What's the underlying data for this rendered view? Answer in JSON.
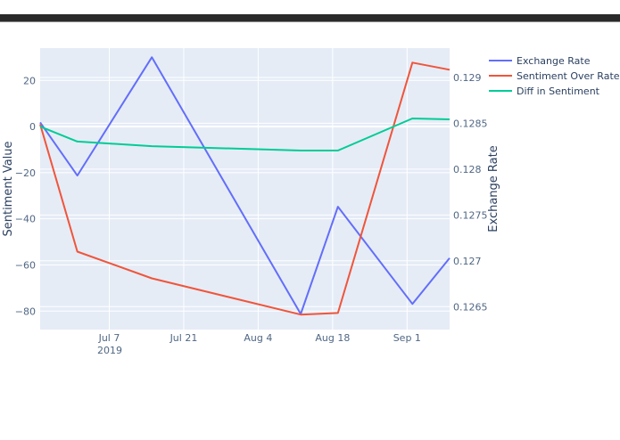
{
  "chart_data": {
    "type": "line",
    "title": "",
    "x": [
      "2019-06-24",
      "2019-07-01",
      "2019-07-15",
      "2019-08-12",
      "2019-08-19",
      "2019-09-02",
      "2019-09-09"
    ],
    "xlabel": "",
    "x_ticks": [
      "Jul 7",
      "Jul 21",
      "Aug 4",
      "Aug 18",
      "Sep 1"
    ],
    "x_year_label": "2019",
    "ylabel": "Sentiment Value",
    "y2label": "Exchange Rate",
    "ylim": [
      -88,
      34
    ],
    "y2lim": [
      0.12625,
      0.12932
    ],
    "y_ticks": [
      "20",
      "0",
      "−20",
      "−40",
      "−60",
      "−80"
    ],
    "y2_ticks": [
      "0.129",
      "0.1285",
      "0.128",
      "0.1275",
      "0.127",
      "0.1265"
    ],
    "grid": true,
    "legend_position": "right-top",
    "series": [
      {
        "name": "Exchange Rate",
        "axis": "y2",
        "color": "#636efa",
        "values": [
          0.12851,
          0.12793,
          0.12922,
          0.12642,
          0.12759,
          0.12653,
          0.12703
        ]
      },
      {
        "name": "Sentiment Over Rate",
        "axis": "y",
        "color": "#ef553b",
        "values": [
          1,
          -54.2,
          -65.8,
          -81.5,
          -80.8,
          27.7,
          24.6
        ]
      },
      {
        "name": "Diff in Sentiment",
        "axis": "y",
        "color": "#00cc96",
        "values": [
          0,
          -6.5,
          -8.5,
          -10.4,
          -10.4,
          3.5,
          3.1
        ]
      }
    ]
  },
  "legend": {
    "items": [
      {
        "label": "Exchange Rate",
        "color": "#636efa"
      },
      {
        "label": "Sentiment Over Rate",
        "color": "#ef553b"
      },
      {
        "label": "Diff in Sentiment",
        "color": "#00cc96"
      }
    ]
  },
  "axes": {
    "left_title": "Sentiment Value",
    "right_title": "Exchange Rate",
    "year_label": "2019"
  }
}
